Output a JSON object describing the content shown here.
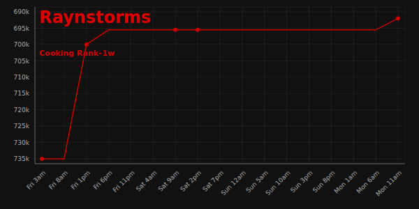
{
  "chart_data": {
    "type": "line",
    "title": "Raynstorms",
    "subtitle": "Cooking Rank–1w",
    "categories": [
      "Fri 3am",
      "Fri 8am",
      "Fri 1pm",
      "Fri 6pm",
      "Fri 11pm",
      "Sat 4am",
      "Sat 9am",
      "Sat 2pm",
      "Sat 7pm",
      "Sun 12am",
      "Sun 5am",
      "Sun 10am",
      "Sun 3pm",
      "Sun 8pm",
      "Mon 1am",
      "Mon 6am",
      "Mon 11am"
    ],
    "values": [
      735000,
      735000,
      700000,
      695500,
      695500,
      695500,
      695500,
      695500,
      695500,
      695500,
      695500,
      695500,
      695500,
      695500,
      695500,
      695500,
      692000
    ],
    "color": "#cc0000",
    "marker": "circle",
    "marker_indices": [
      0,
      2,
      6,
      7,
      16
    ],
    "ylim": [
      736500,
      688500
    ],
    "yticks": [
      {
        "value": 690000,
        "label": "690k"
      },
      {
        "value": 695000,
        "label": "695k"
      },
      {
        "value": 700000,
        "label": "700k"
      },
      {
        "value": 705000,
        "label": "705k"
      },
      {
        "value": 710000,
        "label": "710k"
      },
      {
        "value": 715000,
        "label": "715k"
      },
      {
        "value": 720000,
        "label": "720k"
      },
      {
        "value": 725000,
        "label": "725k"
      },
      {
        "value": 730000,
        "label": "730k"
      },
      {
        "value": 735000,
        "label": "735k"
      }
    ],
    "grid": true
  }
}
